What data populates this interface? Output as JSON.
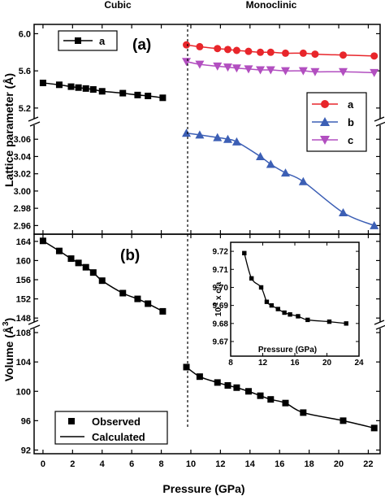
{
  "phases": {
    "left": "Cubic",
    "right": "Monoclinic"
  },
  "xlabel": "Pressure (GPa)",
  "panel_a": {
    "label": "(a)",
    "ylabel": "Lattice parameter (Å)",
    "legend_left": [
      "a"
    ],
    "legend_right": [
      "a",
      "b",
      "c"
    ]
  },
  "panel_b": {
    "label": "(b)",
    "ylabel": "Volume (Å³)",
    "ylabel_main": "Volume (Å",
    "ylabel_sup": "3",
    "ylabel_end": ")",
    "legend": [
      "Observed",
      "Calculated"
    ]
  },
  "inset": {
    "xlabel": "Pressure (GPa)",
    "ylabel": "10⁻¹ x c/a",
    "ylabel_pre": "10",
    "ylabel_sup": "-1",
    "ylabel_post": " x c/a"
  },
  "colors": {
    "black": "#000000",
    "red": "#e8262b",
    "blue": "#3c5fb5",
    "magenta": "#b24fc0"
  },
  "chart_data": [
    {
      "type": "line",
      "panel": "a-upper",
      "x_ticks": [
        0,
        2,
        4,
        6,
        8,
        10,
        12,
        14,
        16,
        18,
        20,
        22
      ],
      "xlim": [
        -0.6,
        22.8
      ],
      "ylim": [
        5.05,
        6.1
      ],
      "y_ticks": [
        5.2,
        5.6,
        6.0
      ],
      "y_tick_labels": [
        "5.2",
        "5.6",
        "6.0"
      ],
      "series": [
        {
          "name": "a",
          "phase": "Cubic",
          "marker": "square",
          "color": "#000000",
          "x": [
            0,
            1.1,
            1.9,
            2.4,
            2.9,
            3.4,
            4.0,
            5.4,
            6.4,
            7.1,
            8.1
          ],
          "y": [
            5.47,
            5.45,
            5.43,
            5.42,
            5.41,
            5.4,
            5.38,
            5.36,
            5.34,
            5.33,
            5.31
          ]
        },
        {
          "name": "a",
          "phase": "Monoclinic",
          "marker": "circle",
          "color": "#e8262b",
          "x": [
            9.7,
            10.6,
            11.8,
            12.5,
            13.1,
            13.9,
            14.7,
            15.4,
            16.4,
            17.6,
            18.4,
            20.3,
            22.4
          ],
          "y": [
            5.88,
            5.86,
            5.84,
            5.83,
            5.82,
            5.81,
            5.8,
            5.8,
            5.79,
            5.79,
            5.78,
            5.77,
            5.76
          ]
        },
        {
          "name": "c",
          "phase": "Monoclinic",
          "marker": "triangle-down",
          "color": "#b24fc0",
          "x": [
            9.7,
            10.6,
            11.8,
            12.5,
            13.1,
            13.9,
            14.7,
            15.4,
            16.4,
            17.6,
            18.4,
            20.3,
            22.4
          ],
          "y": [
            5.7,
            5.67,
            5.65,
            5.64,
            5.63,
            5.62,
            5.61,
            5.61,
            5.6,
            5.6,
            5.59,
            5.59,
            5.58
          ]
        }
      ]
    },
    {
      "type": "line",
      "panel": "a-lower",
      "xlim": [
        -0.6,
        22.8
      ],
      "ylim": [
        2.95,
        3.08
      ],
      "y_ticks": [
        2.96,
        2.98,
        3.0,
        3.02,
        3.04,
        3.06
      ],
      "y_tick_labels": [
        "2.96",
        "2.98",
        "3.00",
        "3.02",
        "3.04",
        "3.06"
      ],
      "series": [
        {
          "name": "b",
          "phase": "Monoclinic",
          "marker": "triangle-up",
          "color": "#3c5fb5",
          "x": [
            9.7,
            10.6,
            11.8,
            12.5,
            13.1,
            14.7,
            15.4,
            16.4,
            17.6,
            20.3,
            22.4
          ],
          "y": [
            3.067,
            3.065,
            3.062,
            3.06,
            3.057,
            3.04,
            3.031,
            3.021,
            3.011,
            2.975,
            2.96
          ]
        }
      ]
    },
    {
      "type": "scatter",
      "panel": "b-upper",
      "xlim": [
        -0.6,
        22.8
      ],
      "ylim": [
        146.5,
        165.5
      ],
      "y_ticks": [
        148,
        152,
        156,
        160,
        164
      ],
      "y_tick_labels": [
        "148",
        "152",
        "156",
        "160",
        "164"
      ],
      "series": [
        {
          "name": "Observed",
          "phase": "Cubic",
          "marker": "square",
          "color": "#000000",
          "x": [
            0,
            1.1,
            1.9,
            2.4,
            2.9,
            3.4,
            4.0,
            5.4,
            6.4,
            7.1,
            8.1
          ],
          "y": [
            164.1,
            162.0,
            160.4,
            159.5,
            158.6,
            157.5,
            155.8,
            153.2,
            152.0,
            151.0,
            149.4
          ]
        }
      ]
    },
    {
      "type": "scatter",
      "panel": "b-lower",
      "xlim": [
        -0.6,
        22.8
      ],
      "ylim": [
        91.5,
        109
      ],
      "y_ticks": [
        92,
        96,
        100,
        104,
        108
      ],
      "y_tick_labels": [
        "92",
        "96",
        "100",
        "104",
        "108"
      ],
      "series": [
        {
          "name": "Observed",
          "phase": "Monoclinic",
          "marker": "square",
          "color": "#000000",
          "x": [
            9.7,
            10.6,
            11.8,
            12.5,
            13.1,
            13.9,
            14.7,
            15.4,
            16.4,
            17.6,
            20.3,
            22.4
          ],
          "y": [
            103.3,
            102.0,
            101.2,
            100.8,
            100.5,
            100.0,
            99.4,
            98.9,
            98.4,
            97.1,
            96.0,
            95.0
          ]
        }
      ]
    },
    {
      "type": "line",
      "panel": "b-inset",
      "xlabel": "Pressure (GPa)",
      "ylabel": "10⁻¹ x c/a",
      "xlim": [
        8,
        24
      ],
      "x_ticks": [
        8,
        12,
        16,
        20,
        24
      ],
      "x_tick_labels": [
        "8",
        "12",
        "16",
        "20",
        "24"
      ],
      "ylim": [
        9.67,
        9.725
      ],
      "y_ticks": [
        9.67,
        9.68,
        9.69,
        9.7,
        9.71,
        9.72
      ],
      "y_tick_labels": [
        "9.67",
        "9.68",
        "9.69",
        "9.70",
        "9.71",
        "9.72"
      ],
      "series": [
        {
          "marker": "square",
          "color": "#000000",
          "x": [
            9.7,
            10.6,
            11.8,
            12.5,
            13.1,
            13.9,
            14.7,
            15.4,
            16.4,
            17.6,
            20.3,
            22.4
          ],
          "y": [
            9.719,
            9.705,
            9.7,
            9.692,
            9.69,
            9.688,
            9.686,
            9.685,
            9.684,
            9.682,
            9.681,
            9.68
          ]
        }
      ]
    }
  ]
}
